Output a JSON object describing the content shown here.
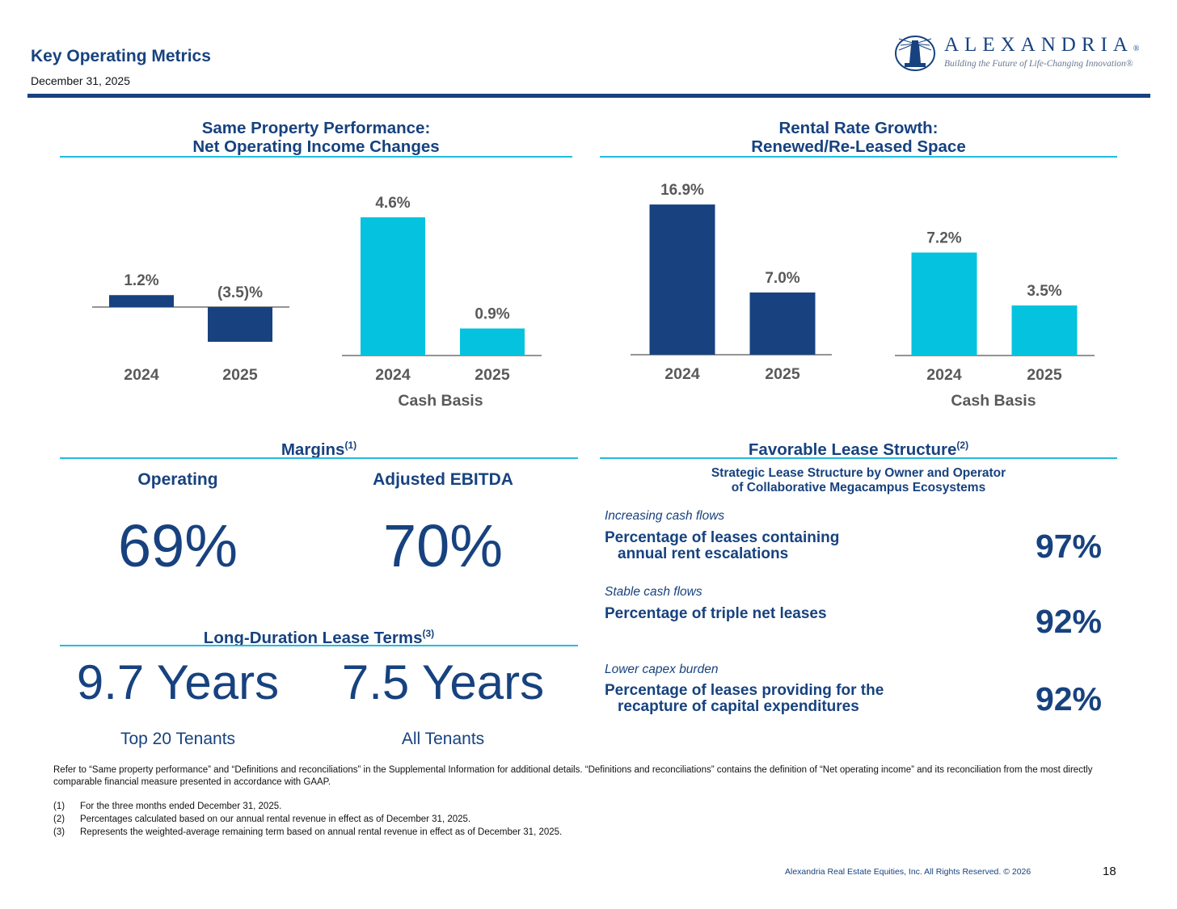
{
  "header": {
    "title": "Key Operating Metrics",
    "date": "December 31, 2025",
    "logo_name": "ALEXANDRIA",
    "logo_registered": "®",
    "logo_tagline": "Building the Future of Life-Changing Innovation®",
    "accent_color": "#17427f",
    "rule_color": "#22bce0"
  },
  "same_property": {
    "title_line1": "Same Property Performance:",
    "title_line2": "Net Operating Income Changes",
    "cash_basis_label": "Cash Basis"
  },
  "rental_rate": {
    "title_line1": "Rental Rate Growth:",
    "title_line2": "Renewed/Re-Leased Space",
    "cash_basis_label": "Cash Basis"
  },
  "chart_data": [
    {
      "type": "bar",
      "title": "Same Property Performance: Net Operating Income Changes",
      "categories": [
        "2024",
        "2025"
      ],
      "values": [
        1.2,
        -3.5
      ],
      "labels": [
        "1.2%",
        "(3.5)%"
      ],
      "color": "#17427f"
    },
    {
      "type": "bar",
      "title": "Same Property Performance: Net Operating Income Changes (Cash Basis)",
      "subtitle": "Cash Basis",
      "categories": [
        "2024",
        "2025"
      ],
      "values": [
        4.6,
        0.9
      ],
      "labels": [
        "4.6%",
        "0.9%"
      ],
      "color": "#05c3de"
    },
    {
      "type": "bar",
      "title": "Rental Rate Growth: Renewed/Re-Leased Space",
      "categories": [
        "2024",
        "2025"
      ],
      "values": [
        16.9,
        7.0
      ],
      "labels": [
        "16.9%",
        "7.0%"
      ],
      "color": "#17427f"
    },
    {
      "type": "bar",
      "title": "Rental Rate Growth: Renewed/Re-Leased Space (Cash Basis)",
      "subtitle": "Cash Basis",
      "categories": [
        "2024",
        "2025"
      ],
      "values": [
        7.2,
        3.5
      ],
      "labels": [
        "7.2%",
        "3.5%"
      ],
      "color": "#05c3de"
    }
  ],
  "margins": {
    "title": "Margins",
    "title_note": "(1)",
    "operating_label": "Operating",
    "operating_value": "69%",
    "ebitda_label": "Adjusted EBITDA",
    "ebitda_value": "70%"
  },
  "lease_terms": {
    "title": "Long-Duration Lease Terms",
    "title_note": "(3)",
    "top20_value": "9.7 Years",
    "top20_label": "Top 20 Tenants",
    "all_value": "7.5 Years",
    "all_label": "All Tenants"
  },
  "lease_structure": {
    "title": "Favorable Lease Structure",
    "title_note": "(2)",
    "subtitle_line1": "Strategic Lease Structure by Owner and Operator",
    "subtitle_line2": "of Collaborative Megacampus Ecosystems",
    "items": [
      {
        "category": "Increasing cash flows",
        "desc_line1": "Percentage of leases containing",
        "desc_line2": "annual rent escalations",
        "value": "97%"
      },
      {
        "category": "Stable cash flows",
        "desc_line1": "Percentage of triple net leases",
        "desc_line2": "",
        "value": "92%"
      },
      {
        "category": "Lower capex burden",
        "desc_line1": "Percentage of leases providing for the",
        "desc_line2": "recapture of capital expenditures",
        "value": "92%"
      }
    ]
  },
  "footnotes": {
    "intro": "Refer to “Same property performance” and “Definitions and reconciliations” in the Supplemental Information for additional details. “Definitions and reconciliations” contains the definition of “Net operating income” and its reconciliation from the most directly comparable financial measure presented in accordance with GAAP.",
    "notes": [
      {
        "num": "(1)",
        "text": "For the three months ended December 31, 2025."
      },
      {
        "num": "(2)",
        "text": "Percentages calculated based on our annual rental revenue in effect as of December 31, 2025."
      },
      {
        "num": "(3)",
        "text": "Represents the weighted-average remaining term based on annual rental revenue in effect as of December 31, 2025."
      }
    ],
    "copyright": "Alexandria Real Estate Equities, Inc. All Rights Reserved. © 2026",
    "page_number": "18"
  }
}
